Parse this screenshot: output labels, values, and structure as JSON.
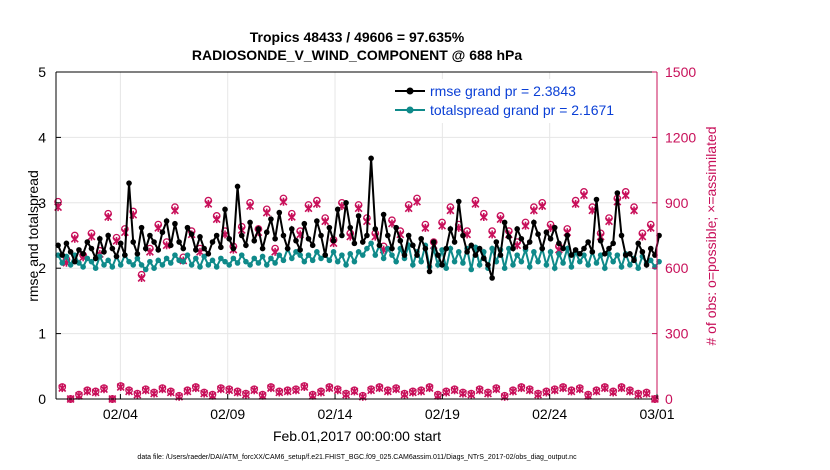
{
  "chart_data": {
    "type": "line",
    "title_line1": "Tropics 48433 / 49606 = 97.635%",
    "title_line2": "RADIOSONDE_V_WIND_COMPONENT @ 688 hPa",
    "xlabel": "Feb.01,2017 00:00:00 start",
    "ylabel_left": "rmse and totalspread",
    "ylabel_right": "# of obs: o=possible; ×=assimilated",
    "footnote": "data file: /Users/raeder/DAI/ATM_forcXX/CAM6_setup/f.e21.FHIST_BGC.f09_025.CAM6assim.011/Diags_NTrS_2017-02/obs_diag_output.nc",
    "xlim": [
      0.5,
      28.5
    ],
    "ylim_left": [
      0,
      5
    ],
    "ylim_right": [
      0,
      1500
    ],
    "x_ticks": [
      {
        "x": 3.5,
        "label": "02/04"
      },
      {
        "x": 8.5,
        "label": "02/09"
      },
      {
        "x": 13.5,
        "label": "02/14"
      },
      {
        "x": 18.5,
        "label": "02/19"
      },
      {
        "x": 23.5,
        "label": "02/24"
      },
      {
        "x": 28.5,
        "label": "03/01"
      }
    ],
    "y_ticks_left": [
      "0",
      "1",
      "2",
      "3",
      "4",
      "5"
    ],
    "y_ticks_right": [
      "0",
      "300",
      "600",
      "900",
      "1200",
      "1500"
    ],
    "colors": {
      "rmse": "#000000",
      "spread": "#0f8a8a",
      "obs": "#c8105a",
      "legend_text": "#0a3fd6"
    },
    "series": [
      {
        "name": "rmse grand pr = 2.3843",
        "values": [
          2.35,
          2.2,
          2.38,
          2.25,
          2.1,
          2.28,
          2.22,
          2.4,
          2.3,
          2.15,
          2.45,
          2.25,
          2.5,
          2.3,
          2.18,
          2.38,
          2.2,
          3.3,
          2.4,
          2.22,
          2.62,
          2.3,
          2.5,
          2.4,
          2.28,
          2.55,
          2.72,
          2.35,
          2.68,
          2.4,
          2.3,
          2.62,
          2.52,
          2.28,
          2.48,
          2.3,
          2.22,
          2.4,
          2.5,
          2.32,
          2.9,
          2.45,
          2.3,
          3.25,
          2.5,
          2.35,
          2.7,
          2.42,
          2.6,
          2.3,
          2.55,
          2.75,
          2.45,
          2.85,
          2.5,
          2.3,
          2.6,
          2.42,
          2.28,
          2.68,
          2.45,
          2.35,
          2.72,
          2.5,
          2.2,
          2.62,
          2.42,
          2.9,
          2.5,
          3.0,
          2.62,
          2.38,
          2.8,
          2.4,
          2.5,
          3.68,
          2.6,
          2.35,
          2.82,
          2.5,
          2.3,
          2.62,
          2.42,
          2.2,
          2.5,
          2.35,
          2.2,
          2.45,
          2.3,
          1.95,
          2.4,
          2.2,
          2.05,
          2.3,
          2.6,
          2.4,
          3.02,
          2.5,
          2.25,
          2.35,
          2.2,
          2.3,
          2.15,
          2.05,
          1.85,
          2.4,
          2.2,
          2.7,
          2.48,
          2.3,
          2.6,
          2.45,
          2.32,
          2.4,
          2.7,
          2.52,
          2.3,
          2.55,
          2.45,
          2.62,
          2.38,
          2.3,
          2.5,
          2.2,
          2.28,
          2.22,
          2.3,
          2.4,
          2.25,
          3.05,
          2.42,
          2.22,
          2.3,
          2.38,
          3.15,
          2.5,
          2.2,
          2.22,
          2.12,
          2.38,
          2.25,
          2.05,
          2.3,
          2.2,
          2.5
        ]
      },
      {
        "name": "totalspread grand pr = 2.1671",
        "values": [
          2.2,
          2.08,
          2.18,
          2.05,
          2.2,
          2.08,
          2.02,
          2.15,
          2.1,
          2.0,
          2.18,
          2.05,
          2.12,
          2.02,
          2.18,
          2.05,
          2.2,
          2.1,
          2.05,
          2.15,
          2.05,
          1.98,
          2.1,
          2.0,
          2.12,
          2.05,
          2.15,
          2.08,
          2.2,
          2.12,
          2.1,
          2.2,
          2.05,
          2.15,
          2.02,
          2.18,
          2.05,
          2.12,
          2.02,
          2.15,
          2.1,
          2.05,
          2.15,
          2.08,
          2.2,
          2.1,
          2.05,
          2.15,
          2.08,
          2.18,
          2.05,
          2.15,
          2.08,
          2.2,
          2.12,
          2.3,
          2.15,
          2.25,
          2.2,
          2.1,
          2.2,
          2.12,
          2.25,
          2.15,
          2.2,
          2.12,
          2.25,
          2.1,
          2.2,
          2.05,
          2.22,
          2.1,
          2.25,
          2.2,
          2.3,
          2.38,
          2.2,
          2.35,
          2.15,
          2.3,
          2.2,
          2.1,
          2.3,
          2.15,
          2.35,
          2.05,
          2.25,
          2.1,
          2.35,
          2.02,
          2.3,
          2.05,
          2.28,
          2.0,
          2.3,
          2.1,
          2.25,
          2.08,
          2.3,
          1.98,
          2.32,
          2.05,
          2.25,
          2.0,
          2.3,
          2.1,
          2.28,
          2.0,
          2.3,
          2.05,
          2.2,
          2.1,
          2.28,
          2.02,
          2.25,
          2.1,
          2.3,
          2.05,
          2.25,
          2.0,
          2.22,
          2.08,
          2.3,
          2.02,
          2.25,
          2.1,
          2.2,
          2.05,
          2.25,
          2.08,
          2.2,
          2.0,
          2.22,
          2.1,
          2.2,
          2.02,
          2.22,
          2.05,
          2.15,
          2.0,
          2.18,
          2.08,
          2.12,
          2.02,
          2.1
        ]
      }
    ],
    "obs_possible": [
      905,
      55,
      640,
      0,
      750,
      20,
      660,
      40,
      760,
      35,
      680,
      50,
      850,
      0,
      740,
      60,
      780,
      40,
      860,
      25,
      570,
      45,
      690,
      30,
      800,
      50,
      720,
      35,
      880,
      15,
      650,
      40,
      770,
      55,
      690,
      30,
      910,
      20,
      840,
      50,
      770,
      45,
      700,
      35,
      790,
      25,
      900,
      45,
      780,
      20,
      870,
      55,
      690,
      35,
      920,
      40,
      850,
      45,
      770,
      60,
      890,
      20,
      910,
      35,
      830,
      55,
      730,
      45,
      900,
      25,
      760,
      40,
      890,
      15,
      830,
      45,
      760,
      55,
      700,
      40,
      820,
      50,
      770,
      25,
      890,
      35,
      920,
      40,
      800,
      55,
      720,
      20,
      810,
      35,
      880,
      45,
      800,
      30,
      770,
      25,
      910,
      45,
      850,
      30,
      770,
      50,
      840,
      15,
      770,
      40,
      720,
      55,
      810,
      45,
      880,
      25,
      900,
      35,
      800,
      45,
      700,
      55,
      780,
      40,
      910,
      50,
      950,
      20,
      880,
      40,
      760,
      55,
      830,
      35,
      920,
      55,
      950,
      40,
      880,
      25,
      760,
      30,
      800,
      0
    ],
    "obs_assimilated": [
      880,
      50,
      625,
      0,
      735,
      15,
      650,
      35,
      745,
      30,
      665,
      45,
      835,
      0,
      725,
      55,
      765,
      35,
      845,
      20,
      555,
      40,
      675,
      25,
      785,
      45,
      705,
      30,
      865,
      10,
      635,
      35,
      755,
      50,
      675,
      25,
      895,
      15,
      825,
      45,
      755,
      40,
      685,
      30,
      775,
      20,
      885,
      40,
      765,
      15,
      855,
      50,
      675,
      30,
      905,
      35,
      835,
      40,
      755,
      55,
      875,
      15,
      895,
      30,
      815,
      50,
      715,
      40,
      885,
      20,
      745,
      35,
      875,
      10,
      815,
      40,
      745,
      50,
      685,
      35,
      805,
      45,
      755,
      20,
      875,
      30,
      905,
      35,
      785,
      50,
      705,
      15,
      795,
      30,
      865,
      40,
      785,
      25,
      755,
      20,
      895,
      40,
      835,
      25,
      755,
      45,
      825,
      10,
      755,
      35,
      705,
      50,
      795,
      40,
      865,
      20,
      885,
      30,
      785,
      40,
      685,
      50,
      765,
      35,
      895,
      45,
      935,
      15,
      865,
      35,
      745,
      50,
      815,
      30,
      905,
      50,
      935,
      35,
      865,
      20,
      745,
      25,
      785,
      0
    ]
  }
}
